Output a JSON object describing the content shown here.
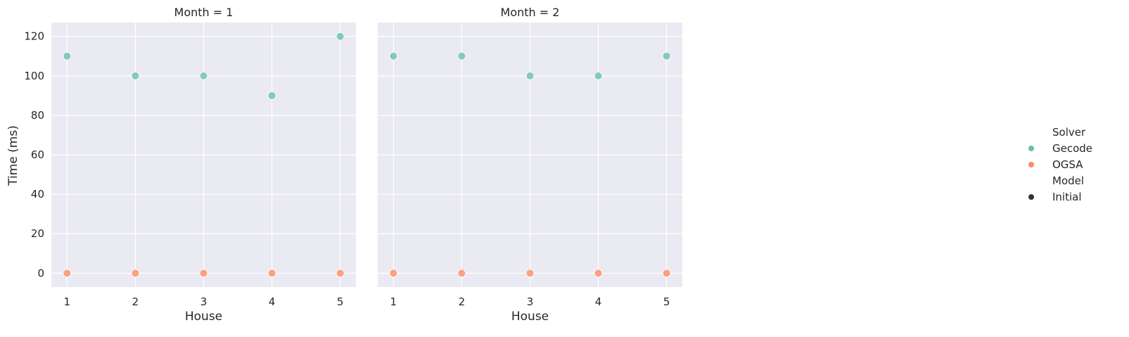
{
  "chart_data": {
    "type": "scatter",
    "xlabel": "House",
    "ylabel": "Time (ms)",
    "x_ticks": [
      1,
      2,
      3,
      4,
      5
    ],
    "y_ticks": [
      0,
      20,
      40,
      60,
      80,
      100,
      120
    ],
    "xlim": [
      0.77,
      5.23
    ],
    "ylim": [
      -7,
      127
    ],
    "grid": true,
    "facets": [
      {
        "title": "Month = 1",
        "series": [
          {
            "name": "Gecode",
            "x": [
              1,
              2,
              3,
              4,
              5
            ],
            "y": [
              110,
              100,
              100,
              90,
              120
            ]
          },
          {
            "name": "OGSA",
            "x": [
              1,
              2,
              3,
              4,
              5
            ],
            "y": [
              0,
              0,
              0,
              0,
              0
            ]
          }
        ]
      },
      {
        "title": "Month = 2",
        "series": [
          {
            "name": "Gecode",
            "x": [
              1,
              2,
              3,
              4,
              5
            ],
            "y": [
              110,
              110,
              100,
              100,
              110
            ]
          },
          {
            "name": "OGSA",
            "x": [
              1,
              2,
              3,
              4,
              5
            ],
            "y": [
              0,
              0,
              0,
              0,
              0
            ]
          }
        ]
      }
    ],
    "legend": {
      "placement": "right",
      "groups": [
        {
          "title": "Solver",
          "entries": [
            {
              "label": "Gecode",
              "color": "#66c2a5"
            },
            {
              "label": "OGSA",
              "color": "#fc8d62"
            }
          ]
        },
        {
          "title": "Model",
          "entries": [
            {
              "label": "Initial",
              "color": "#333333"
            }
          ]
        }
      ]
    },
    "colors": {
      "Gecode": "#66c2a5",
      "OGSA": "#fc8d62"
    }
  }
}
